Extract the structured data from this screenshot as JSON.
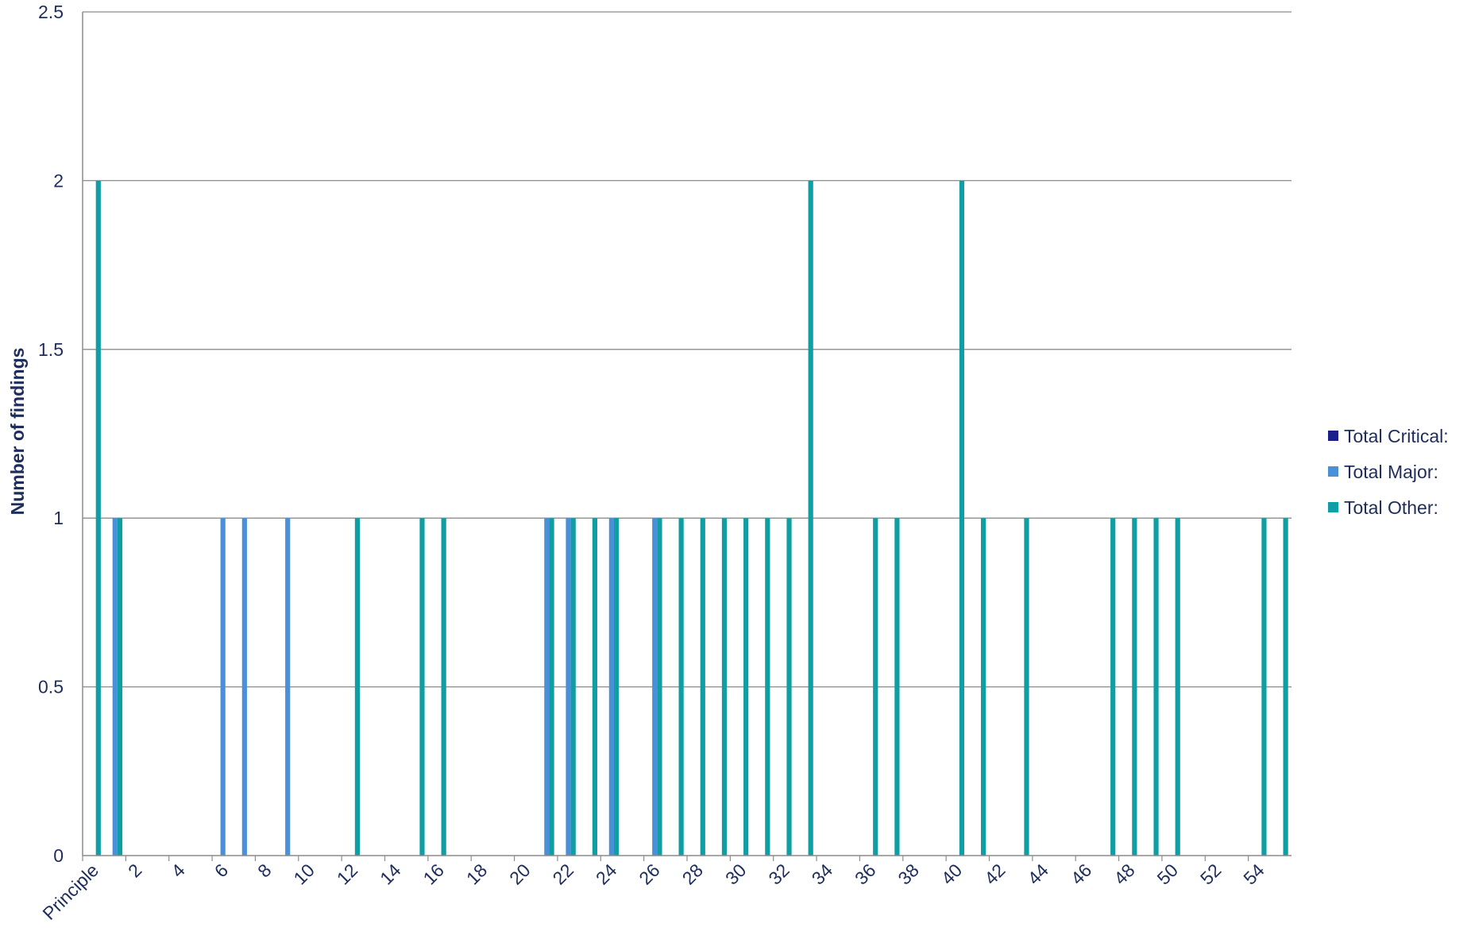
{
  "chart_data": {
    "type": "bar",
    "title": "",
    "xlabel": "",
    "ylabel": "Number of findings",
    "ylim": [
      0,
      2.5
    ],
    "y_ticks": [
      0,
      0.5,
      1,
      1.5,
      2,
      2.5
    ],
    "y_tick_labels": [
      "0",
      "0.5",
      "1",
      "1.5",
      "2",
      "2.5"
    ],
    "grid": true,
    "legend_position": "right",
    "categories": [
      "Principle",
      "1",
      "2",
      "3",
      "4",
      "5",
      "6",
      "7",
      "8",
      "9",
      "10",
      "11",
      "12",
      "13",
      "14",
      "15",
      "16",
      "17",
      "18",
      "19",
      "20",
      "21",
      "22",
      "23",
      "24",
      "25",
      "26",
      "27",
      "28",
      "29",
      "30",
      "31",
      "32",
      "33",
      "34",
      "35",
      "36",
      "37",
      "38",
      "39",
      "40",
      "41",
      "42",
      "43",
      "44",
      "45",
      "46",
      "47",
      "48",
      "49",
      "50",
      "51",
      "52",
      "53",
      "54",
      "55"
    ],
    "x_tick_labels": [
      "Principle",
      "2",
      "4",
      "6",
      "8",
      "10",
      "12",
      "14",
      "16",
      "18",
      "20",
      "22",
      "24",
      "26",
      "28",
      "30",
      "32",
      "34",
      "36",
      "38",
      "40",
      "42",
      "44",
      "46",
      "48",
      "50",
      "52",
      "54"
    ],
    "x_tick_indices": [
      0,
      2,
      4,
      6,
      8,
      10,
      12,
      14,
      16,
      18,
      20,
      22,
      24,
      26,
      28,
      30,
      32,
      34,
      36,
      38,
      40,
      42,
      44,
      46,
      48,
      50,
      52,
      54
    ],
    "series": [
      {
        "name": "Total Critical:",
        "color": "#1a1f8c",
        "values": [
          0,
          0,
          0,
          0,
          0,
          0,
          0,
          0,
          0,
          0,
          0,
          0,
          0,
          0,
          0,
          0,
          0,
          0,
          0,
          0,
          0,
          0,
          0,
          0,
          0,
          0,
          0,
          0,
          0,
          0,
          0,
          0,
          0,
          0,
          0,
          0,
          0,
          0,
          0,
          0,
          0,
          0,
          0,
          0,
          0,
          0,
          0,
          0,
          0,
          0,
          0,
          0,
          0,
          0,
          0,
          0
        ]
      },
      {
        "name": "Total Major:",
        "color": "#4a90d9",
        "values": [
          0,
          1,
          0,
          0,
          0,
          0,
          1,
          1,
          0,
          1,
          0,
          0,
          0,
          0,
          0,
          0,
          0,
          0,
          0,
          0,
          0,
          1,
          1,
          0,
          1,
          0,
          1,
          0,
          0,
          0,
          0,
          0,
          0,
          0,
          0,
          0,
          0,
          0,
          0,
          0,
          0,
          0,
          0,
          0,
          0,
          0,
          0,
          0,
          0,
          0,
          0,
          0,
          0,
          0,
          0,
          0
        ]
      },
      {
        "name": "Total Other:",
        "color": "#0e9ea3",
        "values": [
          2,
          1,
          0,
          0,
          0,
          0,
          0,
          0,
          0,
          0,
          0,
          0,
          1,
          0,
          0,
          1,
          1,
          0,
          0,
          0,
          0,
          1,
          1,
          1,
          1,
          0,
          1,
          1,
          1,
          1,
          1,
          1,
          1,
          2,
          0,
          0,
          1,
          1,
          0,
          0,
          2,
          1,
          0,
          1,
          0,
          0,
          0,
          1,
          1,
          1,
          1,
          0,
          0,
          0,
          1,
          1
        ]
      }
    ]
  }
}
